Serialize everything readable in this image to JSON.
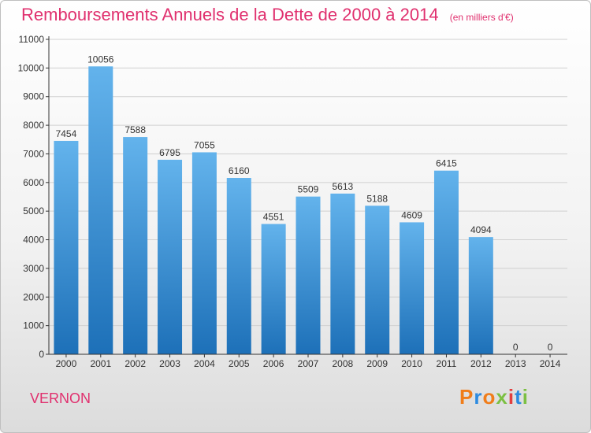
{
  "header": {
    "title": "Remboursements Annuels de la Dette de 2000 à 2014",
    "unit": "(en milliers d'€)"
  },
  "footer": {
    "city": "VERNON",
    "logo_letters": [
      "P",
      "r",
      "o",
      "x",
      "i",
      "t",
      "i"
    ],
    "logo_colors": [
      "#f07d1a",
      "#2d8be0",
      "#f07d1a",
      "#7cc043",
      "#e33f3f",
      "#2d8be0",
      "#7cc043"
    ]
  },
  "colors": {
    "title": "#e0306e",
    "bar_top": "#63b3ec",
    "bar_bottom": "#1d70b8",
    "axis": "#333333",
    "grid": "#d0d0d0"
  },
  "chart_data": {
    "type": "bar",
    "title": "Remboursements Annuels de la Dette de 2000 à 2014",
    "ylabel": "en milliers d'€",
    "xlabel": "",
    "categories": [
      "2000",
      "2001",
      "2002",
      "2003",
      "2004",
      "2005",
      "2006",
      "2007",
      "2008",
      "2009",
      "2010",
      "2011",
      "2012",
      "2013",
      "2014"
    ],
    "values": [
      7454,
      10056,
      7588,
      6795,
      7055,
      6160,
      4551,
      5509,
      5613,
      5188,
      4609,
      6415,
      4094,
      0,
      0
    ],
    "ylim": [
      0,
      11000
    ],
    "yticks": [
      0,
      1000,
      2000,
      3000,
      4000,
      5000,
      6000,
      7000,
      8000,
      9000,
      10000,
      11000
    ],
    "grid": true
  }
}
